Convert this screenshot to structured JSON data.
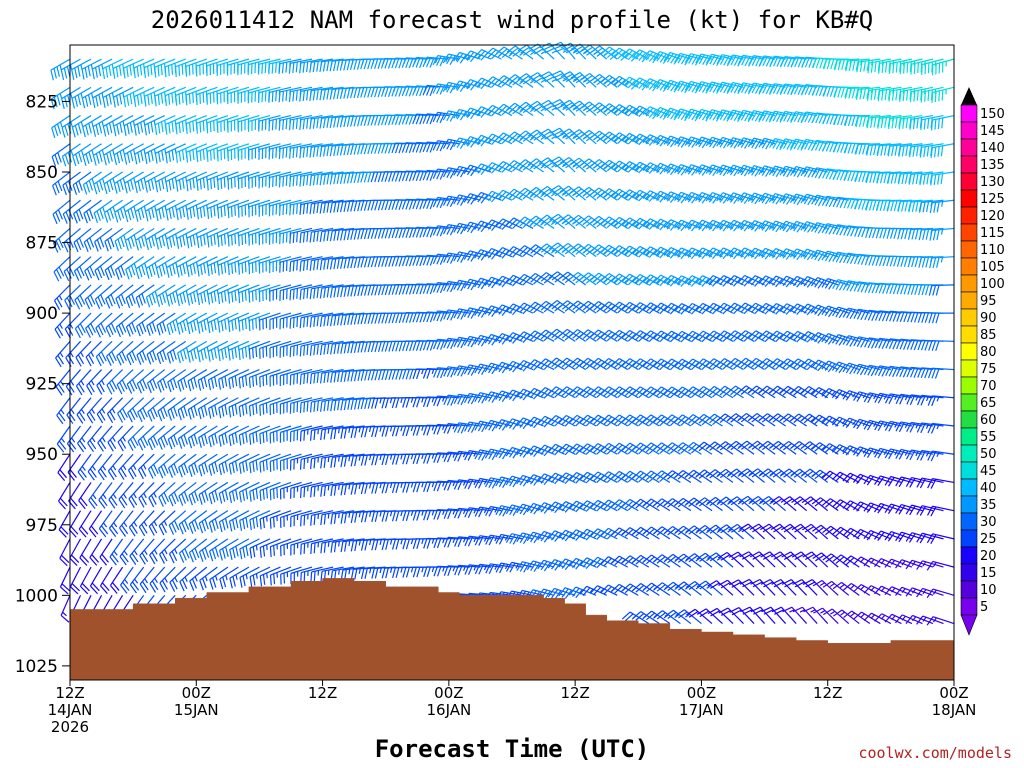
{
  "chart_data": {
    "type": "wind-barb-profile",
    "title": "2026011412 NAM forecast wind profile (kt) for KB#Q",
    "xlabel": "Forecast Time (UTC)",
    "ylabel": "",
    "credit": "coolwx.com/models",
    "y_axis": {
      "range": [
        1030,
        805
      ],
      "ticks": [
        {
          "value": 825,
          "label": "825"
        },
        {
          "value": 850,
          "label": "850"
        },
        {
          "value": 875,
          "label": "875"
        },
        {
          "value": 900,
          "label": "900"
        },
        {
          "value": 925,
          "label": "925"
        },
        {
          "value": 950,
          "label": "950"
        },
        {
          "value": 975,
          "label": "975"
        },
        {
          "value": 1000,
          "label": "1000"
        },
        {
          "value": 1025,
          "label": "1025"
        }
      ]
    },
    "x_axis": {
      "range_hours": [
        0,
        84
      ],
      "ticks": [
        {
          "hour": 0,
          "lines": [
            "12Z",
            "14JAN",
            "2026"
          ]
        },
        {
          "hour": 12,
          "lines": [
            "00Z",
            "15JAN"
          ]
        },
        {
          "hour": 24,
          "lines": [
            "12Z"
          ]
        },
        {
          "hour": 36,
          "lines": [
            "00Z",
            "16JAN"
          ]
        },
        {
          "hour": 48,
          "lines": [
            "12Z"
          ]
        },
        {
          "hour": 60,
          "lines": [
            "00Z",
            "17JAN"
          ]
        },
        {
          "hour": 72,
          "lines": [
            "12Z"
          ]
        },
        {
          "hour": 84,
          "lines": [
            "00Z",
            "18JAN"
          ]
        }
      ]
    },
    "levels_mb": [
      810,
      820,
      830,
      840,
      850,
      860,
      870,
      880,
      890,
      900,
      910,
      920,
      930,
      940,
      950,
      960,
      970,
      980,
      990,
      1000,
      1010,
      1020
    ],
    "surface_pressure_mb": [
      [
        0,
        1005
      ],
      [
        6,
        1003
      ],
      [
        10,
        1001
      ],
      [
        13,
        999
      ],
      [
        17,
        997
      ],
      [
        21,
        995
      ],
      [
        24,
        994
      ],
      [
        27,
        995
      ],
      [
        30,
        997
      ],
      [
        33,
        997
      ],
      [
        35,
        999
      ],
      [
        37,
        1000
      ],
      [
        41,
        1000
      ],
      [
        43,
        1000
      ],
      [
        45,
        1001
      ],
      [
        47,
        1003
      ],
      [
        49,
        1007
      ],
      [
        51,
        1009
      ],
      [
        54,
        1010
      ],
      [
        57,
        1012
      ],
      [
        60,
        1013
      ],
      [
        63,
        1014
      ],
      [
        66,
        1015
      ],
      [
        69,
        1016
      ],
      [
        72,
        1017
      ],
      [
        75,
        1017
      ],
      [
        78,
        1016
      ],
      [
        81,
        1016
      ],
      [
        84,
        1016
      ]
    ],
    "wind_keyframes": [
      {
        "hour": 0,
        "dir_top": 240,
        "dir_bot": 200,
        "spd_top": 35,
        "spd_bot": 15
      },
      {
        "hour": 6,
        "dir_top": 245,
        "dir_bot": 210,
        "spd_top": 38,
        "spd_bot": 20
      },
      {
        "hour": 12,
        "dir_top": 250,
        "dir_bot": 225,
        "spd_top": 40,
        "spd_bot": 25
      },
      {
        "hour": 18,
        "dir_top": 255,
        "dir_bot": 240,
        "spd_top": 40,
        "spd_bot": 25
      },
      {
        "hour": 24,
        "dir_top": 260,
        "dir_bot": 255,
        "spd_top": 35,
        "spd_bot": 22
      },
      {
        "hour": 30,
        "dir_top": 270,
        "dir_bot": 265,
        "spd_top": 35,
        "spd_bot": 22
      },
      {
        "hour": 36,
        "dir_top": 275,
        "dir_bot": 270,
        "spd_top": 33,
        "spd_bot": 22
      },
      {
        "hour": 42,
        "dir_top": 300,
        "dir_bot": 275,
        "spd_top": 35,
        "spd_bot": 25
      },
      {
        "hour": 48,
        "dir_top": 320,
        "dir_bot": 285,
        "spd_top": 35,
        "spd_bot": 28
      },
      {
        "hour": 54,
        "dir_top": 300,
        "dir_bot": 300,
        "spd_top": 38,
        "spd_bot": 25
      },
      {
        "hour": 60,
        "dir_top": 285,
        "dir_bot": 310,
        "spd_top": 40,
        "spd_bot": 22
      },
      {
        "hour": 66,
        "dir_top": 280,
        "dir_bot": 320,
        "spd_top": 40,
        "spd_bot": 18
      },
      {
        "hour": 72,
        "dir_top": 275,
        "dir_bot": 320,
        "spd_top": 42,
        "spd_bot": 15
      },
      {
        "hour": 78,
        "dir_top": 260,
        "dir_bot": 300,
        "spd_top": 47,
        "spd_bot": 12
      },
      {
        "hour": 84,
        "dir_top": 255,
        "dir_bot": 290,
        "spd_top": 45,
        "spd_bot": 12
      }
    ],
    "colorbar": {
      "labels": [
        "150",
        "145",
        "140",
        "135",
        "130",
        "125",
        "120",
        "115",
        "110",
        "105",
        "100",
        "95",
        "90",
        "85",
        "80",
        "75",
        "70",
        "65",
        "60",
        "55",
        "50",
        "45",
        "40",
        "35",
        "30",
        "25",
        "20",
        "15",
        "10",
        "5"
      ],
      "colors": [
        "#ff00ff",
        "#ff00cc",
        "#ff0099",
        "#ff0066",
        "#ff0033",
        "#ff0000",
        "#ff2200",
        "#ff4400",
        "#ff6600",
        "#ff8000",
        "#ff9900",
        "#ffaa00",
        "#ffcc00",
        "#ffdd00",
        "#ffff00",
        "#ddff00",
        "#99ff00",
        "#55ee22",
        "#22dd44",
        "#00ee88",
        "#00eebb",
        "#00dddd",
        "#00bbff",
        "#0099ff",
        "#0066ff",
        "#0044ff",
        "#1a00ff",
        "#3300ee",
        "#5500dd",
        "#7700ee"
      ],
      "top_arrow_color": "#000000",
      "bottom_arrow_color": "#7700ee"
    },
    "terrain_color": "#a0522d"
  }
}
